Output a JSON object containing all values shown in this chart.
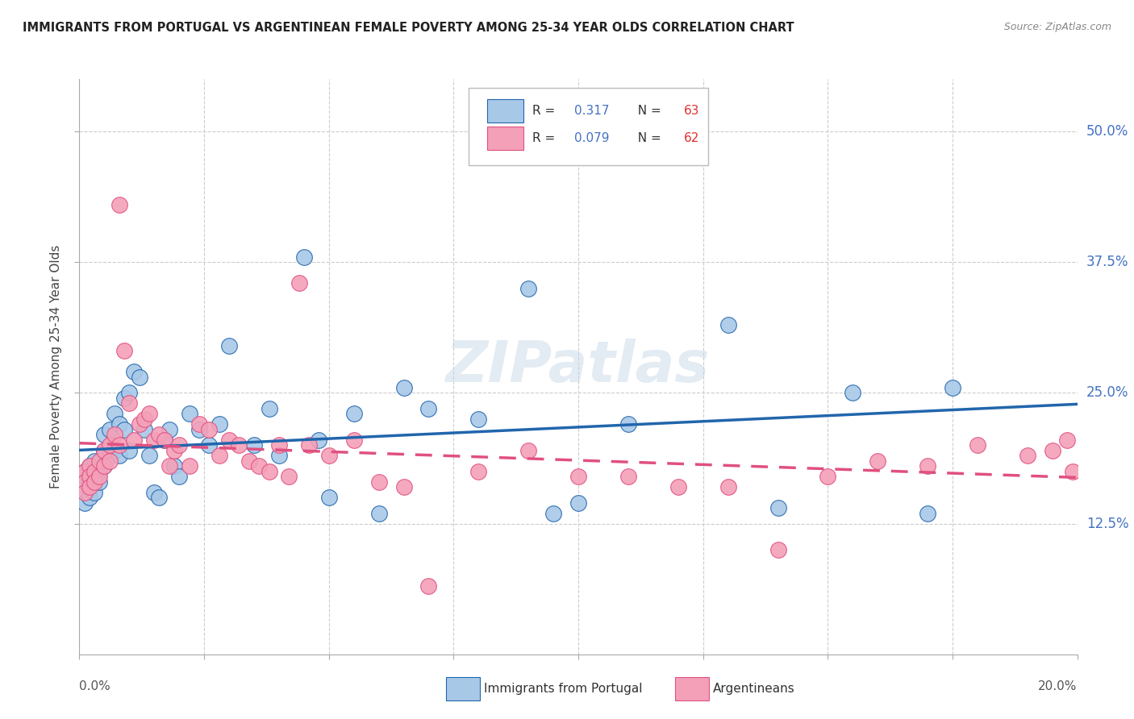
{
  "title": "IMMIGRANTS FROM PORTUGAL VS ARGENTINEAN FEMALE POVERTY AMONG 25-34 YEAR OLDS CORRELATION CHART",
  "source": "Source: ZipAtlas.com",
  "ylabel": "Female Poverty Among 25-34 Year Olds",
  "ytick_labels": [
    "50.0%",
    "37.5%",
    "25.0%",
    "12.5%"
  ],
  "ytick_vals": [
    0.5,
    0.375,
    0.25,
    0.125
  ],
  "color_blue": "#a8c8e8",
  "color_pink": "#f4a0b8",
  "line_color_blue": "#2166ac",
  "line_color_pink": "#e05080",
  "xlim": [
    0.0,
    0.2
  ],
  "ylim": [
    0.0,
    0.55
  ],
  "blue_scatter_x": [
    0.001,
    0.001,
    0.001,
    0.001,
    0.002,
    0.002,
    0.002,
    0.002,
    0.002,
    0.003,
    0.003,
    0.003,
    0.003,
    0.004,
    0.004,
    0.005,
    0.005,
    0.005,
    0.006,
    0.006,
    0.007,
    0.007,
    0.008,
    0.008,
    0.009,
    0.009,
    0.01,
    0.01,
    0.011,
    0.012,
    0.013,
    0.014,
    0.015,
    0.016,
    0.017,
    0.018,
    0.019,
    0.02,
    0.022,
    0.024,
    0.026,
    0.028,
    0.03,
    0.035,
    0.038,
    0.04,
    0.045,
    0.048,
    0.05,
    0.055,
    0.06,
    0.065,
    0.07,
    0.08,
    0.09,
    0.095,
    0.1,
    0.11,
    0.13,
    0.14,
    0.155,
    0.17,
    0.175
  ],
  "blue_scatter_y": [
    0.175,
    0.165,
    0.155,
    0.145,
    0.18,
    0.17,
    0.165,
    0.16,
    0.15,
    0.185,
    0.175,
    0.165,
    0.155,
    0.175,
    0.165,
    0.21,
    0.195,
    0.18,
    0.215,
    0.19,
    0.23,
    0.195,
    0.22,
    0.19,
    0.245,
    0.215,
    0.25,
    0.195,
    0.27,
    0.265,
    0.215,
    0.19,
    0.155,
    0.15,
    0.205,
    0.215,
    0.18,
    0.17,
    0.23,
    0.215,
    0.2,
    0.22,
    0.295,
    0.2,
    0.235,
    0.19,
    0.38,
    0.205,
    0.15,
    0.23,
    0.135,
    0.255,
    0.235,
    0.225,
    0.35,
    0.135,
    0.145,
    0.22,
    0.315,
    0.14,
    0.25,
    0.135,
    0.255
  ],
  "pink_scatter_x": [
    0.001,
    0.001,
    0.001,
    0.002,
    0.002,
    0.002,
    0.003,
    0.003,
    0.004,
    0.004,
    0.005,
    0.005,
    0.006,
    0.006,
    0.007,
    0.008,
    0.008,
    0.009,
    0.01,
    0.011,
    0.012,
    0.013,
    0.014,
    0.015,
    0.016,
    0.017,
    0.018,
    0.019,
    0.02,
    0.022,
    0.024,
    0.026,
    0.028,
    0.03,
    0.032,
    0.034,
    0.036,
    0.038,
    0.04,
    0.042,
    0.044,
    0.046,
    0.05,
    0.055,
    0.06,
    0.065,
    0.07,
    0.08,
    0.09,
    0.1,
    0.11,
    0.12,
    0.13,
    0.14,
    0.15,
    0.16,
    0.17,
    0.18,
    0.19,
    0.195,
    0.198,
    0.199
  ],
  "pink_scatter_y": [
    0.175,
    0.165,
    0.155,
    0.18,
    0.17,
    0.16,
    0.175,
    0.165,
    0.185,
    0.17,
    0.195,
    0.18,
    0.2,
    0.185,
    0.21,
    0.43,
    0.2,
    0.29,
    0.24,
    0.205,
    0.22,
    0.225,
    0.23,
    0.205,
    0.21,
    0.205,
    0.18,
    0.195,
    0.2,
    0.18,
    0.22,
    0.215,
    0.19,
    0.205,
    0.2,
    0.185,
    0.18,
    0.175,
    0.2,
    0.17,
    0.355,
    0.2,
    0.19,
    0.205,
    0.165,
    0.16,
    0.065,
    0.175,
    0.195,
    0.17,
    0.17,
    0.16,
    0.16,
    0.1,
    0.17,
    0.185,
    0.18,
    0.2,
    0.19,
    0.195,
    0.205,
    0.175
  ]
}
